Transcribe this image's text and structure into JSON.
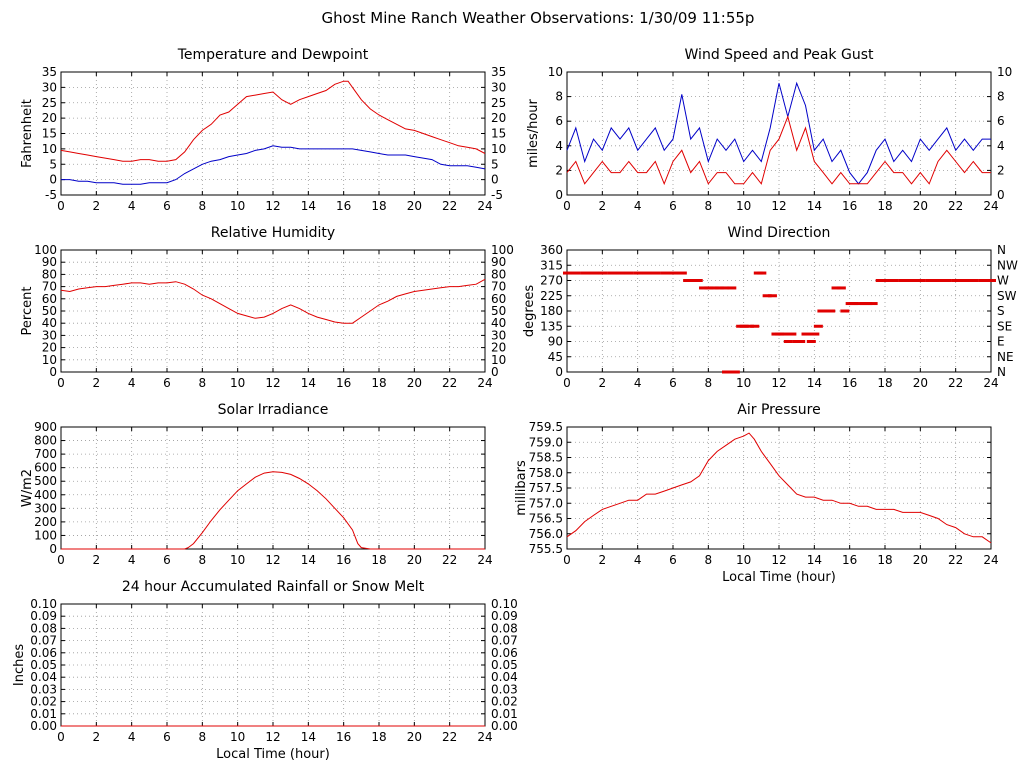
{
  "page": {
    "title": "Ghost Mine Ranch Weather Observations: 1/30/09 11:55p"
  },
  "chart_data": [
    {
      "id": "temperature",
      "type": "line",
      "title": "Temperature and Dewpoint",
      "ylabel": "Fahrenheit",
      "xlabel": "",
      "xlim": [
        0,
        24
      ],
      "ylim": [
        -5,
        35
      ],
      "yticks": [
        "-5",
        "0",
        "5",
        "10",
        "15",
        "20",
        "25",
        "30",
        "35"
      ],
      "yticks_right": [
        "-5",
        "0",
        "5",
        "10",
        "15",
        "20",
        "25",
        "30",
        "35"
      ],
      "xticks": [
        "0",
        "2",
        "4",
        "6",
        "8",
        "10",
        "12",
        "14",
        "16",
        "18",
        "20",
        "22",
        "24"
      ],
      "grid": "dotted",
      "series": [
        {
          "color": "#e00000",
          "x": [
            0,
            0.5,
            1,
            1.5,
            2,
            2.5,
            3,
            3.5,
            4,
            4.5,
            5,
            5.5,
            6,
            6.5,
            7,
            7.5,
            8,
            8.5,
            9,
            9.5,
            10,
            10.5,
            11,
            11.5,
            12,
            12.5,
            13,
            13.5,
            14,
            14.5,
            15,
            15.5,
            16,
            16.25,
            16.5,
            17,
            17.5,
            18,
            18.5,
            19,
            19.5,
            20,
            20.5,
            21,
            21.5,
            22,
            22.5,
            23,
            23.5,
            24
          ],
          "y": [
            9.5,
            9,
            8.5,
            8,
            7.5,
            7,
            6.5,
            6,
            6,
            6.5,
            6.5,
            6,
            6,
            6.5,
            9,
            13,
            16,
            18,
            21,
            22,
            24.5,
            27,
            27.5,
            28,
            28.5,
            26,
            24.5,
            26,
            27,
            28,
            29,
            31,
            32,
            32,
            30,
            26,
            23,
            21,
            19.5,
            18,
            16.5,
            16,
            15,
            14,
            13,
            12,
            11,
            10.5,
            10,
            8.5
          ]
        },
        {
          "color": "#0000c8",
          "x": [
            0,
            0.5,
            1,
            1.5,
            2,
            2.5,
            3,
            3.5,
            4,
            4.5,
            5,
            5.5,
            6,
            6.5,
            7,
            7.5,
            8,
            8.5,
            9,
            9.5,
            10,
            10.5,
            11,
            11.5,
            12,
            12.5,
            13,
            13.5,
            14,
            14.5,
            15,
            15.5,
            16,
            16.5,
            17,
            17.5,
            18,
            18.5,
            19,
            19.5,
            20,
            20.5,
            21,
            21.5,
            22,
            22.5,
            23,
            23.5,
            24
          ],
          "y": [
            0,
            0,
            -0.5,
            -0.5,
            -1,
            -1,
            -1,
            -1.5,
            -1.5,
            -1.5,
            -1,
            -1,
            -1,
            0,
            2,
            3.5,
            5,
            6,
            6.5,
            7.5,
            8,
            8.5,
            9.5,
            10,
            11,
            10.5,
            10.5,
            10,
            10,
            10,
            10,
            10,
            10,
            10,
            9.5,
            9,
            8.5,
            8,
            8,
            8,
            7.5,
            7,
            6.5,
            5,
            4.5,
            4.5,
            4.5,
            4,
            3.5
          ]
        }
      ]
    },
    {
      "id": "wind-speed",
      "type": "line",
      "title": "Wind Speed and Peak Gust",
      "ylabel": "miles/hour",
      "xlabel": "",
      "xlim": [
        0,
        24
      ],
      "ylim": [
        0,
        11
      ],
      "yticks": [
        "0",
        "2",
        "4",
        "6",
        "8",
        "10"
      ],
      "yticks_right": [
        "0",
        "2",
        "4",
        "6",
        "8",
        "10"
      ],
      "xticks": [
        "0",
        "2",
        "4",
        "6",
        "8",
        "10",
        "12",
        "14",
        "16",
        "18",
        "20",
        "22",
        "24"
      ],
      "grid": "dotted",
      "series": [
        {
          "color": "#0000c8",
          "x": [
            0,
            0.5,
            1,
            1.5,
            2,
            2.5,
            3,
            3.5,
            4,
            4.5,
            5,
            5.5,
            6,
            6.5,
            7,
            7.5,
            8,
            8.5,
            9,
            9.5,
            10,
            10.5,
            11,
            11.5,
            12,
            12.5,
            13,
            13.5,
            14,
            14.5,
            15,
            15.5,
            16,
            16.5,
            17,
            17.5,
            18,
            18.5,
            19,
            19.5,
            20,
            20.5,
            21,
            21.5,
            22,
            22.5,
            23,
            23.5,
            24
          ],
          "y": [
            4,
            6,
            3,
            5,
            4,
            6,
            5,
            6,
            4,
            5,
            6,
            4,
            5,
            9,
            5,
            6,
            3,
            5,
            4,
            5,
            3,
            4,
            3,
            6,
            10,
            7,
            10,
            8,
            4,
            5,
            3,
            4,
            2,
            1,
            2,
            4,
            5,
            3,
            4,
            3,
            5,
            4,
            5,
            6,
            4,
            5,
            4,
            5,
            5
          ]
        },
        {
          "color": "#e00000",
          "x": [
            0,
            0.5,
            1,
            1.5,
            2,
            2.5,
            3,
            3.5,
            4,
            4.5,
            5,
            5.5,
            6,
            6.5,
            7,
            7.5,
            8,
            8.5,
            9,
            9.5,
            10,
            10.5,
            11,
            11.5,
            12,
            12.5,
            13,
            13.5,
            14,
            14.5,
            15,
            15.5,
            16,
            16.5,
            17,
            17.5,
            18,
            18.5,
            19,
            19.5,
            20,
            20.5,
            21,
            21.5,
            22,
            22.5,
            23,
            23.5,
            24
          ],
          "y": [
            2,
            3,
            1,
            2,
            3,
            2,
            2,
            3,
            2,
            2,
            3,
            1,
            3,
            4,
            2,
            3,
            1,
            2,
            2,
            1,
            1,
            2,
            1,
            4,
            5,
            7,
            4,
            6,
            3,
            2,
            1,
            2,
            1,
            1,
            1,
            2,
            3,
            2,
            2,
            1,
            2,
            1,
            3,
            4,
            3,
            2,
            3,
            2,
            2
          ]
        }
      ]
    },
    {
      "id": "humidity",
      "type": "line",
      "title": "Relative Humidity",
      "ylabel": "Percent",
      "xlabel": "",
      "xlim": [
        0,
        24
      ],
      "ylim": [
        0,
        100
      ],
      "yticks": [
        "0",
        "10",
        "20",
        "30",
        "40",
        "50",
        "60",
        "70",
        "80",
        "90",
        "100"
      ],
      "yticks_right": [
        "0",
        "10",
        "20",
        "30",
        "40",
        "50",
        "60",
        "70",
        "80",
        "90",
        "100"
      ],
      "xticks": [
        "0",
        "2",
        "4",
        "6",
        "8",
        "10",
        "12",
        "14",
        "16",
        "18",
        "20",
        "22",
        "24"
      ],
      "grid": "dotted",
      "series": [
        {
          "color": "#e00000",
          "x": [
            0,
            0.5,
            1,
            1.5,
            2,
            2.5,
            3,
            3.5,
            4,
            4.5,
            5,
            5.5,
            6,
            6.5,
            7,
            7.5,
            8,
            8.5,
            9,
            9.5,
            10,
            10.5,
            11,
            11.5,
            12,
            12.5,
            13,
            13.5,
            14,
            14.5,
            15,
            15.5,
            16,
            16.5,
            17,
            17.5,
            18,
            18.5,
            19,
            19.5,
            20,
            20.5,
            21,
            21.5,
            22,
            22.5,
            23,
            23.5,
            24
          ],
          "y": [
            67,
            66,
            68,
            69,
            70,
            70,
            71,
            72,
            73,
            73,
            72,
            73,
            73,
            74,
            72,
            68,
            63,
            60,
            56,
            52,
            48,
            46,
            44,
            45,
            48,
            52,
            55,
            52,
            48,
            45,
            43,
            41,
            40,
            40,
            45,
            50,
            55,
            58,
            62,
            64,
            66,
            67,
            68,
            69,
            70,
            70,
            71,
            72,
            76
          ]
        }
      ]
    },
    {
      "id": "wind-direction",
      "type": "scatter",
      "title": "Wind Direction",
      "ylabel": "degrees",
      "xlabel": "",
      "xlim": [
        0,
        24
      ],
      "ylim": [
        0,
        360
      ],
      "yticks": [
        "0",
        "45",
        "90",
        "135",
        "180",
        "225",
        "270",
        "315",
        "360"
      ],
      "yticks_right": [
        "N",
        "NE",
        "E",
        "SE",
        "S",
        "SW",
        "W",
        "NW",
        "N"
      ],
      "xticks": [
        "0",
        "2",
        "4",
        "6",
        "8",
        "10",
        "12",
        "14",
        "16",
        "18",
        "20",
        "22",
        "24"
      ],
      "grid": "dotted",
      "series": [
        {
          "color": "#e00000",
          "x": [
            0,
            0.5,
            1,
            1.5,
            2,
            2.5,
            3,
            3.5,
            4,
            4.5,
            5,
            5.5,
            6,
            6.5,
            6.8,
            7.1,
            7.4,
            7.7,
            8,
            8.3,
            8.6,
            8.9,
            9,
            9.3,
            9.5,
            9.8,
            10,
            10.3,
            10.6,
            10.8,
            11,
            11.3,
            11.6,
            11.8,
            12,
            12.2,
            12.5,
            12.7,
            13,
            13.2,
            13.5,
            13.8,
            14,
            14.2,
            14.4,
            14.6,
            14.9,
            15.2,
            15.5,
            15.7,
            16,
            16.2,
            16.5,
            16.8,
            17,
            17.3,
            17.7,
            18,
            18.5,
            19,
            19.5,
            20,
            20.5,
            21,
            21.5,
            22,
            22.5,
            23,
            23.5,
            24
          ],
          "y": [
            292,
            292,
            292,
            292,
            292,
            292,
            292,
            292,
            292,
            292,
            292,
            292,
            292,
            292,
            270,
            270,
            270,
            248,
            248,
            248,
            248,
            248,
            0,
            248,
            0,
            135,
            135,
            135,
            135,
            292,
            292,
            225,
            225,
            112,
            112,
            112,
            90,
            112,
            90,
            90,
            112,
            90,
            112,
            135,
            180,
            180,
            180,
            248,
            248,
            180,
            202,
            202,
            202,
            202,
            202,
            202,
            270,
            270,
            270,
            270,
            270,
            270,
            270,
            270,
            270,
            270,
            270,
            270,
            270,
            270
          ]
        }
      ]
    },
    {
      "id": "solar",
      "type": "line",
      "title": "Solar Irradiance",
      "ylabel": "W/m2",
      "xlabel": "",
      "xlim": [
        0,
        24
      ],
      "ylim": [
        0,
        900
      ],
      "yticks": [
        "0",
        "100",
        "200",
        "300",
        "400",
        "500",
        "600",
        "700",
        "800",
        "900"
      ],
      "xticks": [
        "0",
        "2",
        "4",
        "6",
        "8",
        "10",
        "12",
        "14",
        "16",
        "18",
        "20",
        "22",
        "24"
      ],
      "grid": "dotted",
      "series": [
        {
          "color": "#e00000",
          "x": [
            0,
            2,
            4,
            6,
            7,
            7.2,
            7.5,
            8,
            8.5,
            9,
            9.5,
            10,
            10.5,
            11,
            11.5,
            12,
            12.5,
            13,
            13.5,
            14,
            14.5,
            15,
            15.5,
            16,
            16.5,
            16.8,
            17,
            17.5,
            18,
            20,
            22,
            24
          ],
          "y": [
            0,
            0,
            0,
            0,
            0,
            10,
            40,
            120,
            210,
            290,
            360,
            430,
            480,
            530,
            560,
            570,
            565,
            550,
            520,
            480,
            430,
            370,
            300,
            230,
            140,
            40,
            10,
            0,
            0,
            0,
            0,
            0
          ]
        }
      ]
    },
    {
      "id": "pressure",
      "type": "line",
      "title": "Air Pressure",
      "ylabel": "millibars",
      "xlabel": "Local Time (hour)",
      "xlim": [
        0,
        24
      ],
      "ylim": [
        755.5,
        759.5
      ],
      "yticks": [
        "755.5",
        "756.0",
        "756.5",
        "757.0",
        "757.5",
        "758.0",
        "758.5",
        "759.0",
        "759.5"
      ],
      "xticks": [
        "0",
        "2",
        "4",
        "6",
        "8",
        "10",
        "12",
        "14",
        "16",
        "18",
        "20",
        "22",
        "24"
      ],
      "grid": "dotted",
      "series": [
        {
          "color": "#e00000",
          "x": [
            0,
            0.5,
            1,
            1.5,
            2,
            2.5,
            3,
            3.5,
            4,
            4.5,
            5,
            5.5,
            6,
            6.5,
            7,
            7.5,
            8,
            8.5,
            9,
            9.5,
            10,
            10.3,
            10.6,
            11,
            11.5,
            12,
            12.5,
            13,
            13.5,
            14,
            14.5,
            15,
            15.5,
            16,
            16.5,
            17,
            17.5,
            18,
            18.5,
            19,
            19.5,
            20,
            20.5,
            21,
            21.5,
            22,
            22.5,
            23,
            23.5,
            24
          ],
          "y": [
            755.9,
            756.1,
            756.4,
            756.6,
            756.8,
            756.9,
            757.0,
            757.1,
            757.1,
            757.3,
            757.3,
            757.4,
            757.5,
            757.6,
            757.7,
            757.9,
            758.4,
            758.7,
            758.9,
            759.1,
            759.2,
            759.3,
            759.1,
            758.7,
            758.3,
            757.9,
            757.6,
            757.3,
            757.2,
            757.2,
            757.1,
            757.1,
            757.0,
            757.0,
            756.9,
            756.9,
            756.8,
            756.8,
            756.8,
            756.7,
            756.7,
            756.7,
            756.6,
            756.5,
            756.3,
            756.2,
            756.0,
            755.9,
            755.9,
            755.7
          ]
        }
      ]
    },
    {
      "id": "rainfall",
      "type": "line",
      "title": "24 hour Accumulated Rainfall or Snow Melt",
      "ylabel": "Inches",
      "xlabel": "Local Time (hour)",
      "xlim": [
        0,
        24
      ],
      "ylim": [
        0,
        0.1
      ],
      "yticks": [
        "0.00",
        "0.01",
        "0.02",
        "0.03",
        "0.04",
        "0.05",
        "0.06",
        "0.07",
        "0.08",
        "0.09",
        "0.10"
      ],
      "yticks_right": [
        "0.00",
        "0.01",
        "0.02",
        "0.03",
        "0.04",
        "0.05",
        "0.06",
        "0.07",
        "0.08",
        "0.09",
        "0.10"
      ],
      "xticks": [
        "0",
        "2",
        "4",
        "6",
        "8",
        "10",
        "12",
        "14",
        "16",
        "18",
        "20",
        "22",
        "24"
      ],
      "grid": "dotted",
      "series": [
        {
          "color": "#e00000",
          "x": [
            0,
            24
          ],
          "y": [
            0,
            0
          ]
        }
      ]
    }
  ]
}
